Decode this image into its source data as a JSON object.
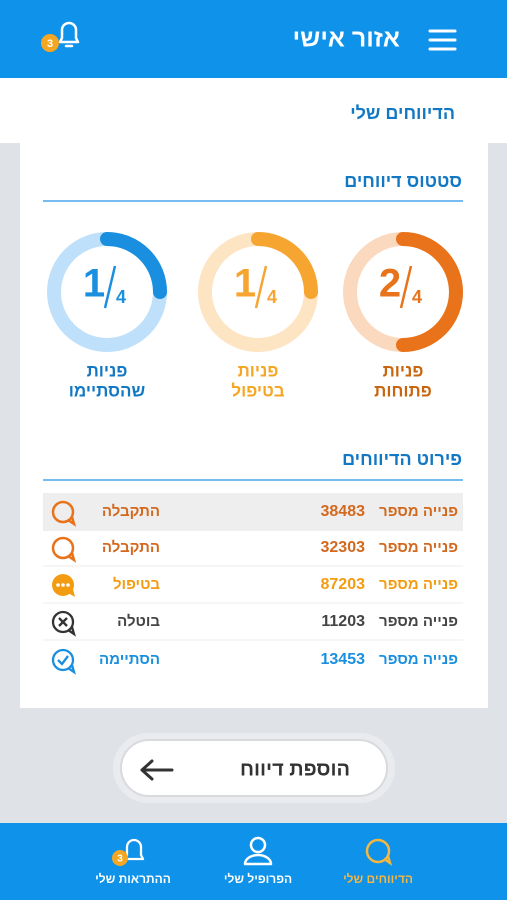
{
  "header": {
    "title": "אזור אישי",
    "notification_count": 3
  },
  "subheader": "הדיווחים שלי",
  "status": {
    "title": "סטטוס דיווחים",
    "items": [
      {
        "count": 2,
        "total": 4,
        "line1": "פניות",
        "line2": "פתוחות",
        "color": "#e8731a",
        "track": "#fbd9bf",
        "label_color": "#c9650f"
      },
      {
        "count": 1,
        "total": 4,
        "line1": "פניות",
        "line2": "בטיפול",
        "color": "#f7a531",
        "track": "#fde4c2",
        "label_color": "#f5a623"
      },
      {
        "count": 1,
        "total": 4,
        "line1": "פניות",
        "line2": "שהסתיימו",
        "color": "#1a8fe0",
        "track": "#bfe0fa",
        "label_color": "#1378c4"
      }
    ]
  },
  "details": {
    "title": "פירוט הדיווחים",
    "rows": [
      {
        "prefix": "פנייה מספר",
        "number": 38483,
        "status": "התקבלה",
        "color": "#d2691e"
      },
      {
        "prefix": "פנייה מספר",
        "number": 32303,
        "status": "התקבלה",
        "color": "#d2691e"
      },
      {
        "prefix": "פנייה מספר",
        "number": 87203,
        "status": "בטיפול",
        "color": "#f39c12"
      },
      {
        "prefix": "פנייה מספר",
        "number": 11203,
        "status": "בוטלה",
        "color": "#444444"
      },
      {
        "prefix": "פנייה מספר",
        "number": 13453,
        "status": "הסתיימה",
        "color": "#1a8fe0"
      }
    ]
  },
  "add_button": "הוספת דיווח",
  "nav": {
    "items": [
      {
        "label": "הדיווחים שלי"
      },
      {
        "label": "הפרופיל שלי"
      },
      {
        "label": "ההתראות שלי",
        "badge": 3
      }
    ]
  }
}
